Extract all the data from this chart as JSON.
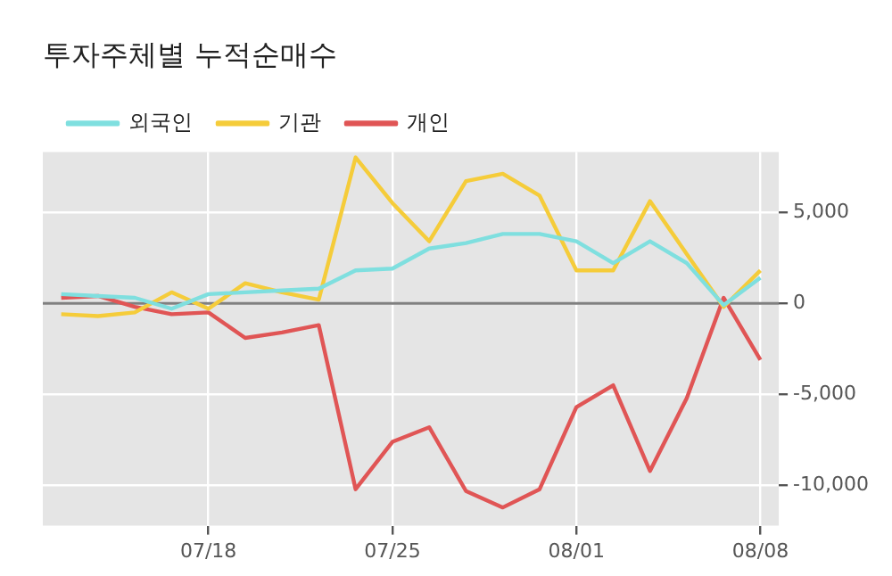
{
  "chart_data": {
    "type": "line",
    "title": "투자주체별 누적순매수",
    "categories": [
      null,
      null,
      null,
      null,
      "07/18",
      null,
      null,
      null,
      null,
      "07/25",
      null,
      null,
      null,
      null,
      "08/01",
      null,
      null,
      null,
      null,
      "08/08"
    ],
    "series": [
      {
        "name": "외국인",
        "color": "#7fdfdf",
        "values": [
          500,
          400,
          300,
          -300,
          500,
          600,
          700,
          800,
          1800,
          1900,
          3000,
          3300,
          3800,
          3800,
          3400,
          2200,
          3400,
          2200,
          -100,
          1400
        ]
      },
      {
        "name": "기관",
        "color": "#f5cc3a",
        "values": [
          -600,
          -700,
          -500,
          600,
          -300,
          1100,
          600,
          200,
          8000,
          5500,
          3400,
          6700,
          7100,
          5900,
          1800,
          1800,
          5600,
          2700,
          -200,
          1800
        ]
      },
      {
        "name": "개인",
        "color": "#e05555",
        "values": [
          300,
          400,
          -200,
          -600,
          -500,
          -1900,
          -1600,
          -1200,
          -10200,
          -7600,
          -6800,
          -10300,
          -11200,
          -10200,
          -5700,
          -4500,
          -9200,
          -5200,
          300,
          -3100
        ]
      }
    ],
    "ylim": [
      -12200,
      8300
    ],
    "yticks": [
      {
        "value": -10000,
        "label": "-10,000"
      },
      {
        "value": -5000,
        "label": "-5,000"
      },
      0,
      {
        "value": 5000,
        "label": "5,000"
      }
    ],
    "ref_lines": [
      {
        "axis": "y",
        "value": 0,
        "color": "#808080"
      }
    ],
    "grid": true,
    "legend": "top left",
    "marker": "none",
    "line_style": "solid"
  }
}
